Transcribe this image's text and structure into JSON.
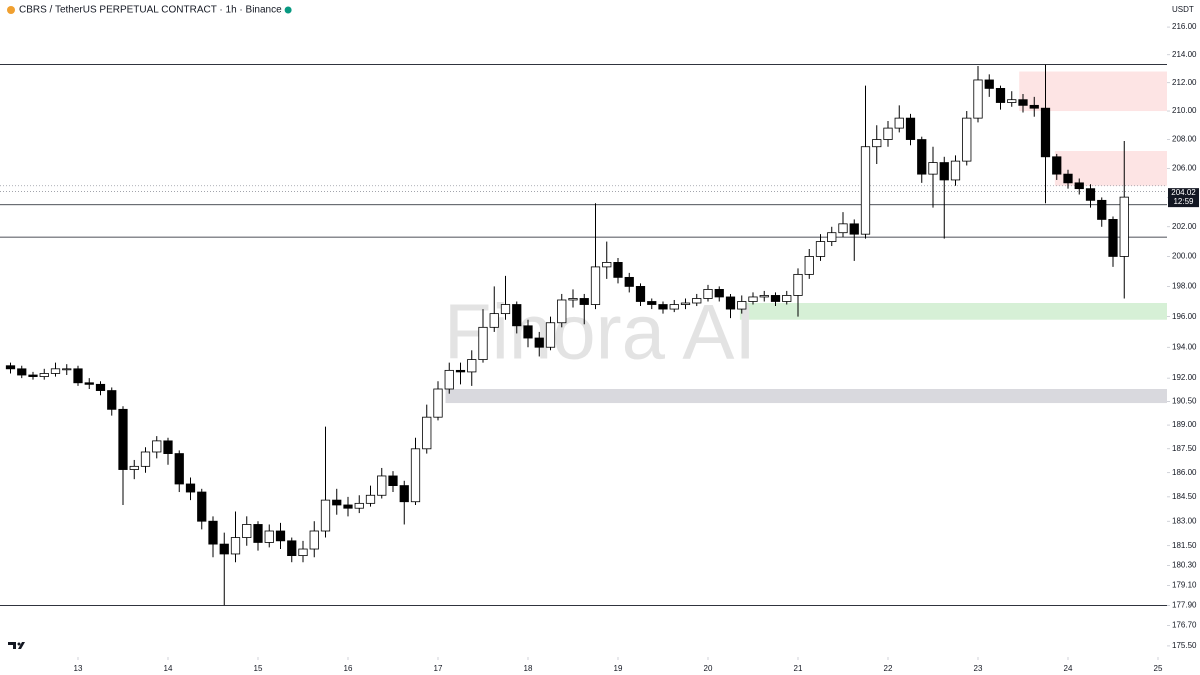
{
  "chart_data": {
    "type": "candlestick",
    "title": "CBRS / TetherUS PERPETUAL CONTRACT · 1h · Binance",
    "unit": "USDT",
    "watermark": "Finora AI",
    "countdown": "12:59",
    "log_scale": true,
    "up_color": "#ffffff",
    "down_color": "#000000",
    "wick_color": "#000000",
    "x": [
      -18,
      -15,
      -12,
      -9,
      -6,
      -3,
      0,
      3,
      6,
      9,
      12,
      15,
      18,
      21,
      24,
      27,
      30,
      33,
      36,
      39,
      42,
      45,
      48,
      51,
      54,
      57,
      60,
      63,
      66,
      69,
      72,
      75,
      78,
      81,
      84,
      87,
      90,
      93,
      96,
      99,
      102,
      105,
      108,
      111,
      114,
      117,
      120,
      123,
      126,
      129,
      132,
      135,
      138,
      141,
      144,
      147,
      150,
      153,
      156,
      159,
      162,
      165,
      168,
      171,
      174,
      177,
      180,
      183,
      186,
      189,
      192,
      195,
      198,
      201,
      204,
      207,
      210,
      213,
      216,
      219,
      222,
      225,
      228,
      231,
      234,
      237,
      240,
      243,
      246,
      249,
      252,
      255,
      258,
      261,
      264,
      267,
      270,
      273,
      276,
      279
    ],
    "open": [
      192.8,
      192.6,
      192.2,
      192.1,
      192.3,
      192.6,
      192.6,
      191.7,
      191.6,
      191.2,
      190.0,
      186.2,
      186.4,
      187.3,
      188.0,
      187.2,
      185.3,
      184.8,
      183.0,
      181.6,
      181.0,
      182.0,
      182.8,
      181.7,
      182.4,
      181.8,
      180.9,
      181.3,
      182.4,
      184.3,
      184.0,
      183.8,
      184.1,
      184.6,
      185.8,
      185.2,
      184.2,
      187.5,
      189.5,
      191.3,
      192.5,
      192.4,
      193.2,
      195.3,
      196.2,
      196.8,
      195.4,
      194.6,
      194.0,
      195.6,
      197.1,
      197.2,
      196.8,
      199.3,
      199.6,
      198.6,
      198.0,
      197.0,
      196.8,
      196.5,
      196.8,
      196.9,
      197.2,
      197.8,
      197.3,
      196.5,
      197.0,
      197.3,
      197.4,
      197.0,
      197.4,
      198.8,
      200.0,
      201.0,
      201.6,
      202.2,
      201.5,
      207.5,
      208.0,
      208.8,
      209.5,
      208.0,
      205.6,
      206.4,
      205.2,
      206.5,
      209.5,
      212.2,
      211.6,
      210.6,
      210.8,
      210.4,
      210.2,
      206.8,
      205.6,
      205.0,
      204.6,
      203.8,
      202.5,
      200.0
    ],
    "high": [
      193.0,
      192.8,
      192.4,
      192.6,
      193.0,
      192.9,
      192.8,
      192.0,
      191.8,
      191.4,
      190.2,
      186.8,
      187.6,
      188.3,
      188.2,
      187.4,
      185.7,
      185.0,
      183.3,
      182.3,
      183.6,
      183.3,
      183.0,
      182.8,
      182.9,
      182.0,
      181.8,
      183.0,
      188.9,
      185.0,
      184.5,
      184.6,
      185.2,
      186.3,
      186.1,
      185.5,
      188.2,
      190.3,
      191.8,
      193.0,
      193.0,
      193.8,
      196.5,
      198.0,
      198.7,
      197.0,
      195.8,
      195.0,
      196.0,
      197.5,
      197.8,
      197.5,
      203.6,
      201.0,
      199.9,
      198.9,
      198.2,
      197.2,
      197.0,
      197.1,
      197.2,
      197.5,
      198.1,
      198.0,
      197.5,
      197.4,
      197.6,
      197.7,
      197.6,
      197.7,
      199.2,
      200.5,
      201.5,
      202.0,
      203.0,
      202.5,
      211.8,
      209.0,
      209.3,
      210.4,
      209.8,
      208.2,
      207.5,
      206.8,
      206.9,
      210.0,
      213.2,
      212.6,
      211.8,
      211.4,
      211.2,
      211.0,
      213.3,
      207.0,
      205.9,
      205.3,
      204.9,
      204.0,
      202.7,
      207.9
    ],
    "low": [
      192.3,
      192.0,
      191.9,
      191.9,
      192.1,
      192.2,
      191.5,
      191.3,
      190.9,
      189.6,
      184.0,
      185.6,
      186.0,
      186.9,
      186.5,
      184.8,
      184.3,
      182.5,
      180.8,
      177.9,
      180.5,
      181.5,
      181.2,
      181.4,
      181.3,
      180.5,
      180.5,
      180.8,
      182.0,
      183.4,
      183.3,
      183.5,
      183.9,
      184.4,
      184.8,
      182.8,
      184.0,
      187.2,
      189.3,
      191.0,
      191.6,
      191.5,
      193.0,
      195.0,
      195.8,
      194.9,
      194.0,
      193.4,
      193.8,
      195.3,
      196.6,
      195.5,
      196.5,
      198.5,
      198.2,
      197.6,
      196.7,
      196.5,
      196.2,
      196.3,
      196.5,
      196.7,
      197.0,
      197.0,
      195.9,
      196.2,
      196.8,
      197.0,
      196.7,
      196.8,
      196.0,
      198.5,
      199.7,
      200.7,
      201.3,
      199.7,
      201.2,
      206.3,
      207.5,
      208.5,
      207.6,
      205.0,
      203.3,
      201.2,
      204.8,
      206.2,
      209.2,
      211.0,
      210.1,
      210.3,
      209.9,
      209.6,
      203.6,
      205.2,
      204.6,
      204.2,
      203.3,
      202.0,
      199.3,
      197.2
    ],
    "close": [
      192.6,
      192.2,
      192.1,
      192.3,
      192.6,
      192.6,
      191.7,
      191.6,
      191.2,
      190.0,
      186.2,
      186.4,
      187.3,
      188.0,
      187.2,
      185.3,
      184.8,
      183.0,
      181.6,
      181.0,
      182.0,
      182.8,
      181.7,
      182.4,
      181.8,
      180.9,
      181.3,
      182.4,
      184.3,
      184.0,
      183.8,
      184.1,
      184.6,
      185.8,
      185.2,
      184.2,
      187.5,
      189.5,
      191.3,
      192.5,
      192.4,
      193.2,
      195.3,
      196.2,
      196.8,
      195.4,
      194.6,
      194.0,
      195.6,
      197.1,
      197.2,
      196.8,
      199.3,
      199.6,
      198.6,
      198.0,
      197.0,
      196.8,
      196.5,
      196.8,
      196.9,
      197.2,
      197.8,
      197.3,
      196.5,
      197.0,
      197.3,
      197.4,
      197.0,
      197.4,
      198.8,
      200.0,
      201.0,
      201.6,
      202.2,
      201.5,
      207.5,
      208.0,
      208.8,
      209.5,
      208.0,
      205.6,
      206.4,
      205.2,
      206.5,
      209.5,
      212.2,
      211.6,
      210.6,
      210.8,
      210.4,
      210.2,
      206.8,
      205.6,
      205.0,
      204.6,
      203.8,
      202.5,
      200.0,
      204.02
    ],
    "xlim": [
      -20.8,
      290.4
    ],
    "ylim": [
      174.85,
      217.97
    ],
    "xticks": [
      {
        "value": 0,
        "label": "13"
      },
      {
        "value": 24,
        "label": "14"
      },
      {
        "value": 48,
        "label": "15"
      },
      {
        "value": 72,
        "label": "16"
      },
      {
        "value": 96,
        "label": "17"
      },
      {
        "value": 120,
        "label": "18"
      },
      {
        "value": 144,
        "label": "19"
      },
      {
        "value": 168,
        "label": "20"
      },
      {
        "value": 192,
        "label": "21"
      },
      {
        "value": 216,
        "label": "22"
      },
      {
        "value": 240,
        "label": "23"
      },
      {
        "value": 264,
        "label": "24"
      },
      {
        "value": 288,
        "label": "25"
      }
    ],
    "yticks": [
      {
        "value": 216,
        "label": "216.00"
      },
      {
        "value": 214,
        "label": "214.00"
      },
      {
        "value": 212,
        "label": "212.00"
      },
      {
        "value": 210,
        "label": "210.00"
      },
      {
        "value": 208,
        "label": "208.00"
      },
      {
        "value": 206,
        "label": "206.00"
      },
      {
        "value": 204,
        "label": "204.00"
      },
      {
        "value": 202,
        "label": "202.00"
      },
      {
        "value": 200,
        "label": "200.00"
      },
      {
        "value": 198,
        "label": "198.00"
      },
      {
        "value": 196,
        "label": "196.00"
      },
      {
        "value": 194,
        "label": "194.00"
      },
      {
        "value": 192,
        "label": "192.00"
      },
      {
        "value": 190.5,
        "label": "190.50"
      },
      {
        "value": 189,
        "label": "189.00"
      },
      {
        "value": 187.5,
        "label": "187.50"
      },
      {
        "value": 186,
        "label": "186.00"
      },
      {
        "value": 184.5,
        "label": "184.50"
      },
      {
        "value": 183,
        "label": "183.00"
      },
      {
        "value": 181.5,
        "label": "181.50"
      },
      {
        "value": 180.3,
        "label": "180.30"
      },
      {
        "value": 179.1,
        "label": "179.10"
      },
      {
        "value": 177.9,
        "label": "177.90"
      },
      {
        "value": 176.7,
        "label": "176.70"
      },
      {
        "value": 175.5,
        "label": "175.50"
      }
    ],
    "levels": [
      213.3,
      203.5,
      201.3,
      177.9
    ],
    "dotted_levels": [
      204.8,
      204.4
    ],
    "zones": [
      {
        "from": 251,
        "top": 212.8,
        "bottom": 210.0,
        "color": "#fde4e4"
      },
      {
        "from": 260.5,
        "top": 207.2,
        "bottom": 204.8,
        "color": "#fde4e4"
      },
      {
        "from": 176.5,
        "top": 196.9,
        "bottom": 195.8,
        "color": "#d6f0d6"
      },
      {
        "from": 98,
        "top": 191.3,
        "bottom": 190.4,
        "color": "#d9d9de"
      }
    ]
  }
}
